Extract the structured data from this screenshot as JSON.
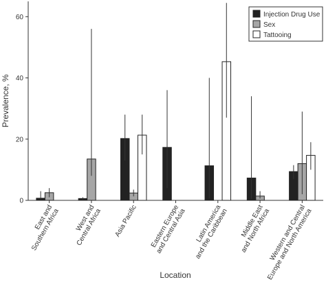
{
  "chart_data": {
    "type": "bar",
    "title": "",
    "xlabel": "Location",
    "ylabel": "Prevalence, %",
    "ylim": [
      0,
      65
    ],
    "yticks": [
      0,
      20,
      40,
      60
    ],
    "grid": false,
    "legend_position": "top-right",
    "categories": [
      [
        "East and",
        "Southern Africa"
      ],
      [
        "West and",
        "Central Africa"
      ],
      [
        "Asia Pacific"
      ],
      [
        "Eastern Europe",
        "and Central Asia"
      ],
      [
        "Latin America",
        "and the Caribbean"
      ],
      [
        "Middle East",
        "and North Africa"
      ],
      [
        "Western and Central",
        "Europe and North America"
      ]
    ],
    "series": [
      {
        "name": "Injection Drug Use",
        "color": "#222222",
        "values": [
          0.7,
          0.6,
          20.2,
          17.3,
          11.3,
          7.3,
          9.4
        ],
        "ci_low": [
          0.3,
          0.3,
          13.0,
          4.0,
          0.6,
          0.5,
          7.0
        ],
        "ci_high": [
          3.0,
          1.0,
          28.0,
          36.0,
          40.0,
          34.0,
          11.5
        ]
      },
      {
        "name": "Sex",
        "color": "#a6a6a6",
        "values": [
          2.5,
          13.5,
          2.4,
          null,
          null,
          1.4,
          12.0
        ],
        "ci_low": [
          1.0,
          8.0,
          1.3,
          null,
          null,
          0.6,
          2.0
        ],
        "ci_high": [
          4.0,
          56.0,
          3.5,
          null,
          null,
          3.0,
          29.0
        ]
      },
      {
        "name": "Tattooing",
        "color": "#ffffff",
        "values": [
          null,
          null,
          21.3,
          null,
          45.3,
          null,
          14.7
        ],
        "ci_low": [
          null,
          null,
          15.0,
          null,
          27.0,
          null,
          10.0
        ],
        "ci_high": [
          null,
          null,
          28.0,
          null,
          64.5,
          null,
          19.0
        ]
      }
    ]
  }
}
